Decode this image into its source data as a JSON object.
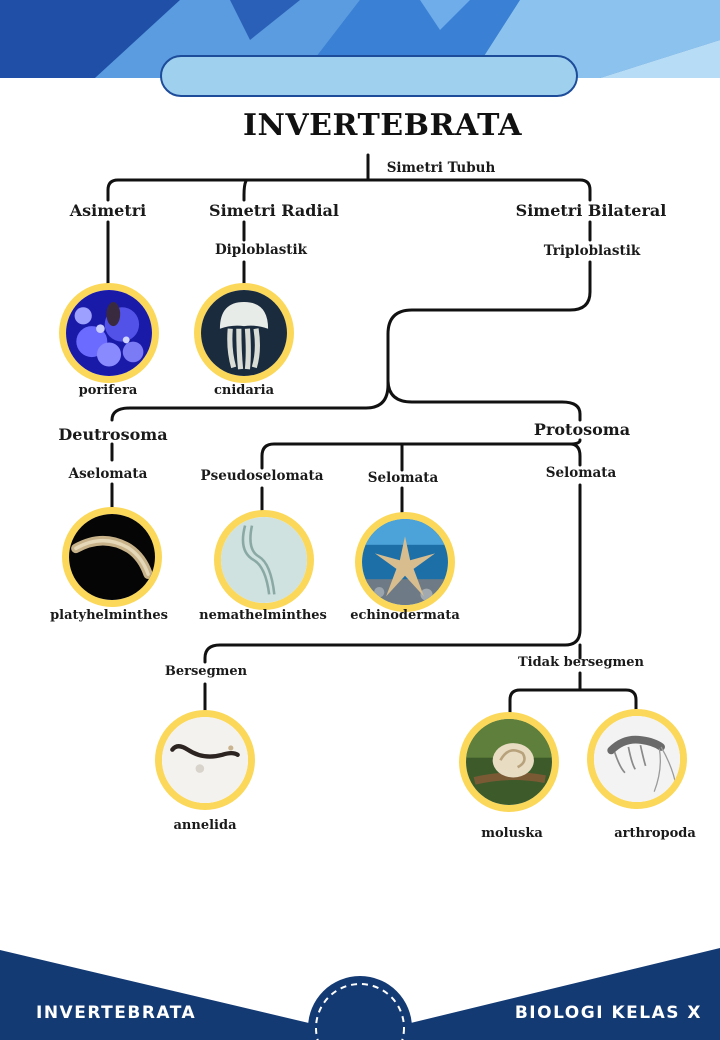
{
  "title": "INVERTEBRATA",
  "nodes": {
    "simetri_tubuh": "Simetri Tubuh",
    "asimetri": "Asimetri",
    "simetri_radial": "Simetri Radial",
    "simetri_bilateral": "Simetri Bilateral",
    "diploblastik": "Diploblastik",
    "triploblastik": "Triploblastik",
    "deutrosoma": "Deutrosoma",
    "protosoma": "Protosoma",
    "aselomata": "Aselomata",
    "pseudoselomata": "Pseudoselomata",
    "selomata_a": "Selomata",
    "selomata_b": "Selomata",
    "bersegmen": "Bersegmen",
    "tidak_bersegmen": "Tidak bersegmen"
  },
  "organisms": {
    "porifera": "porifera",
    "cnidaria": "cnidaria",
    "platyhelminthes": "platyhelminthes",
    "nemathelminthes": "nemathelminthes",
    "echinodermata": "echinodermata",
    "annelida": "annelida",
    "moluska": "moluska",
    "arthropoda": "arthropoda"
  },
  "footer": {
    "left": "INVERTEBRATA",
    "right": "BIOLOGI KELAS X"
  },
  "colors": {
    "navy": "#143a74",
    "accent_blue": "#3f7fd1",
    "pill_fill": "#9fd0ee",
    "circle_border": "#fbd85a"
  }
}
